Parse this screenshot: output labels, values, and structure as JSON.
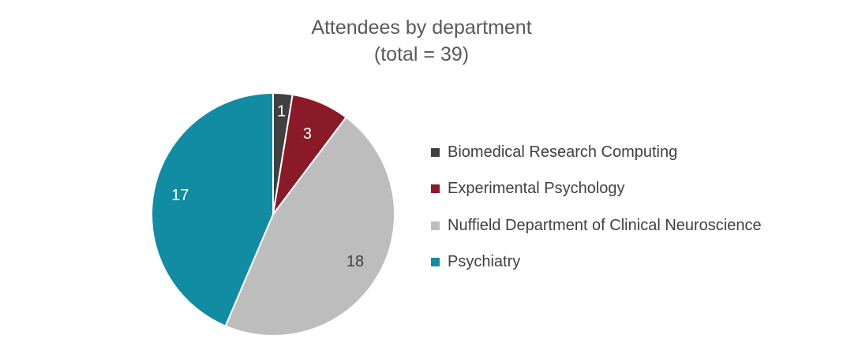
{
  "chart_data": {
    "type": "pie",
    "title": "Attendees by department",
    "subtitle": "(total = 39)",
    "categories": [
      "Biomedical Research Computing",
      "Experimental Psychology",
      "Nuffield Department of Clinical Neuroscience",
      "Psychiatry"
    ],
    "values": [
      1,
      3,
      18,
      17
    ],
    "colors": [
      "#404040",
      "#8b1a28",
      "#bdbdbd",
      "#118ca3"
    ],
    "data_label_colors": [
      "#ffffff",
      "#ffffff",
      "#404040",
      "#ffffff"
    ],
    "legend_position": "right",
    "start_angle": "12 o'clock",
    "direction": "clockwise"
  }
}
